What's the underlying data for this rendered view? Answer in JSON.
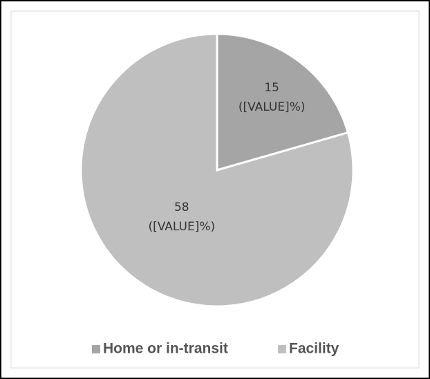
{
  "chart_data": {
    "type": "pie",
    "categories": [
      "Home or in-transit",
      "Facility"
    ],
    "values": [
      15,
      58
    ],
    "value_labels": [
      [
        "15",
        "([VALUE]%)"
      ],
      [
        "58",
        "([VALUE]%)"
      ]
    ],
    "colors": [
      "#a5a5a5",
      "#bfbfbf"
    ],
    "legend": "bottom"
  }
}
